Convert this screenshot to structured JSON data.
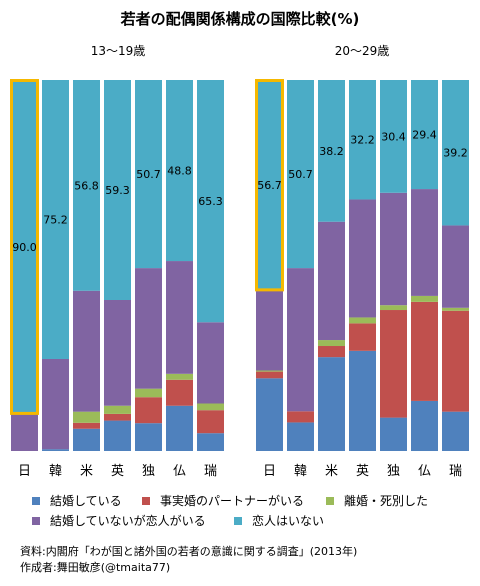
{
  "chart_data": {
    "type": "bar",
    "title": "若者の配偶関係構成の国際比較(%)",
    "xlabel": "",
    "ylabel": "",
    "ylim": [
      0,
      100
    ],
    "grid": false,
    "legend_placement": "bottom",
    "categories": [
      "日",
      "韓",
      "米",
      "英",
      "独",
      "仏",
      "瑞"
    ],
    "legend": [
      {
        "label": "結婚している",
        "color": "#4f81bd"
      },
      {
        "label": "事実婚のパートナーがいる",
        "color": "#c0504d"
      },
      {
        "label": "離婚・死別した",
        "color": "#9bbb59"
      },
      {
        "label": "結婚していないが恋人がいる",
        "color": "#8064a2"
      },
      {
        "label": "恋人はいない",
        "color": "#4bacc6"
      }
    ],
    "panels": [
      {
        "subtitle": "13〜19歳",
        "highlight": "日",
        "series": [
          {
            "name": "結婚している",
            "values": [
              0.0,
              0.5,
              6.0,
              8.2,
              7.5,
              12.2,
              4.8
            ]
          },
          {
            "name": "事実婚のパートナーがいる",
            "values": [
              0.0,
              0.0,
              1.6,
              1.8,
              7.0,
              7.0,
              6.2
            ]
          },
          {
            "name": "離婚・死別した",
            "values": [
              0.0,
              0.0,
              3.0,
              2.2,
              2.3,
              1.6,
              1.8
            ]
          },
          {
            "name": "結婚していないが恋人がいる",
            "values": [
              10.0,
              24.3,
              32.6,
              28.5,
              32.5,
              30.4,
              21.9
            ]
          },
          {
            "name": "恋人はいない",
            "values": [
              90.0,
              75.2,
              56.8,
              59.3,
              50.7,
              48.8,
              65.3
            ]
          }
        ]
      },
      {
        "subtitle": "20〜29歳",
        "highlight": "日",
        "series": [
          {
            "name": "結婚している",
            "values": [
              19.6,
              7.7,
              25.3,
              27.0,
              9.0,
              13.5,
              10.6
            ]
          },
          {
            "name": "事実婚のパートナーがいる",
            "values": [
              1.8,
              3.0,
              3.0,
              7.4,
              29.0,
              26.7,
              27.2
            ]
          },
          {
            "name": "離婚・死別した",
            "values": [
              0.3,
              0.0,
              1.6,
              1.6,
              1.3,
              1.6,
              0.8
            ]
          },
          {
            "name": "結婚していないが恋人がいる",
            "values": [
              21.6,
              38.6,
              31.9,
              31.8,
              30.3,
              28.8,
              22.2
            ]
          },
          {
            "name": "恋人はいない",
            "values": [
              56.7,
              50.7,
              38.2,
              32.2,
              30.4,
              29.4,
              39.2
            ]
          }
        ]
      }
    ],
    "value_label_series": "恋人はいない"
  },
  "source": "資料:内閣府「わが国と諸外国の若者の意識に関する調査」(2013年)",
  "author": "作成者:舞田敏彦(@tmaita77)"
}
